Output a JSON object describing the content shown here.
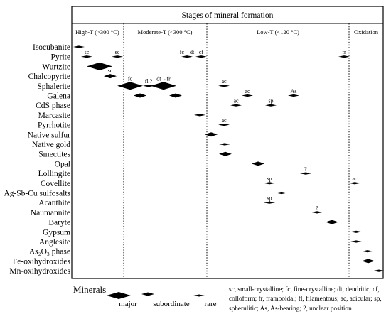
{
  "title": "Stages of mineral formation",
  "stages": [
    "High-T (>300 °C)",
    "Moderate-T (<300 °C)",
    "Low-T (<120 °C)",
    "Oxidation"
  ],
  "minerals": [
    {
      "label": "Isocubanite",
      "marks": [
        {
          "stage": 0,
          "size": "rare",
          "tag": ""
        }
      ]
    },
    {
      "label": "Pyrite",
      "marks": [
        {
          "stage": 0,
          "size": "rare",
          "tag": "sc"
        },
        {
          "stage": 0,
          "size": "rare",
          "tag": "sc"
        },
        {
          "stage": 1,
          "size": "rare",
          "tag": "fc→dt"
        },
        {
          "stage": 1,
          "size": "rare",
          "tag": "cf"
        },
        {
          "stage": 2,
          "size": "rare",
          "tag": "fr"
        }
      ]
    },
    {
      "label": "Wurtzite",
      "marks": [
        {
          "stage": 0,
          "size": "major",
          "tag": ""
        }
      ]
    },
    {
      "label": "Chalcopyrite",
      "marks": [
        {
          "stage": 0,
          "size": "subordinate",
          "tag": "sc"
        }
      ]
    },
    {
      "label": "Sphalerite",
      "marks": [
        {
          "stage": 1,
          "size": "major",
          "tag": "fc"
        },
        {
          "stage": 1,
          "size": "rare",
          "tag": "fl ?"
        },
        {
          "stage": 1,
          "size": "major",
          "tag": "dt→fr"
        },
        {
          "stage": 2,
          "size": "rare",
          "tag": "ac"
        }
      ]
    },
    {
      "label": "Galena",
      "marks": [
        {
          "stage": 1,
          "size": "subordinate",
          "tag": ""
        },
        {
          "stage": 1,
          "size": "subordinate",
          "tag": ""
        },
        {
          "stage": 2,
          "size": "rare",
          "tag": "ac"
        },
        {
          "stage": 2,
          "size": "rare",
          "tag": "As"
        }
      ]
    },
    {
      "label": "CdS phase",
      "marks": [
        {
          "stage": 2,
          "size": "rare",
          "tag": "ac"
        },
        {
          "stage": 2,
          "size": "rare",
          "tag": "sp"
        }
      ]
    },
    {
      "label": "Marcasite",
      "marks": [
        {
          "stage": 1,
          "size": "rare",
          "tag": ""
        }
      ]
    },
    {
      "label": "Pyrrhotite",
      "marks": [
        {
          "stage": 2,
          "size": "rare",
          "tag": "ac"
        }
      ]
    },
    {
      "label": "Native sulfur",
      "marks": [
        {
          "stage": 2,
          "size": "subordinate",
          "tag": ""
        }
      ]
    },
    {
      "label": "Native gold",
      "marks": [
        {
          "stage": 2,
          "size": "rare",
          "tag": ""
        }
      ]
    },
    {
      "label": "Smectites",
      "marks": [
        {
          "stage": 2,
          "size": "subordinate",
          "tag": ""
        }
      ]
    },
    {
      "label": "Opal",
      "marks": [
        {
          "stage": 2,
          "size": "subordinate",
          "tag": ""
        }
      ]
    },
    {
      "label": "Lollingite",
      "marks": [
        {
          "stage": 2,
          "size": "rare",
          "tag": "?"
        }
      ]
    },
    {
      "label": "Covellite",
      "marks": [
        {
          "stage": 2,
          "size": "rare",
          "tag": "sp"
        },
        {
          "stage": 3,
          "size": "rare",
          "tag": "ac"
        }
      ]
    },
    {
      "label": "Ag-Sb-Cu sulfosalts",
      "marks": [
        {
          "stage": 2,
          "size": "rare",
          "tag": ""
        }
      ]
    },
    {
      "label": "Acanthite",
      "marks": [
        {
          "stage": 2,
          "size": "rare",
          "tag": "sp"
        }
      ]
    },
    {
      "label": "Naumannite",
      "marks": [
        {
          "stage": 2,
          "size": "rare",
          "tag": "?"
        }
      ]
    },
    {
      "label": "Baryte",
      "marks": [
        {
          "stage": 2,
          "size": "subordinate",
          "tag": ""
        }
      ]
    },
    {
      "label": "Gypsum",
      "marks": [
        {
          "stage": 3,
          "size": "rare",
          "tag": ""
        }
      ]
    },
    {
      "label": "Anglesite",
      "marks": [
        {
          "stage": 3,
          "size": "rare",
          "tag": ""
        }
      ]
    },
    {
      "label": "As₂O₃ phase",
      "marks": [
        {
          "stage": 3,
          "size": "rare",
          "tag": ""
        }
      ]
    },
    {
      "label": "Fe-oxihydroxides",
      "marks": [
        {
          "stage": 3,
          "size": "subordinate",
          "tag": ""
        }
      ]
    },
    {
      "label": "Mn-oxihydroxides",
      "marks": [
        {
          "stage": 3,
          "size": "rare",
          "tag": ""
        }
      ]
    }
  ],
  "legend": {
    "heading": "Minerals",
    "major": "major",
    "subordinate": "subordinate",
    "rare": "rare"
  },
  "abbreviations": "sc, small-crystalline; fc, fine-crystalline; dt, dendritic; cf, colloform; fr, framboidal; fl, filamentous; ac, acicular; sp, spherulitic; As, As-bearing; ?, unclear position"
}
